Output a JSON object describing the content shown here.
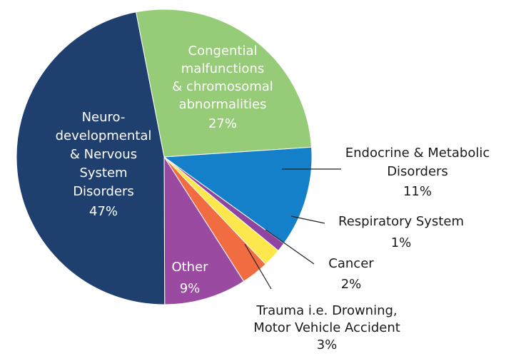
{
  "chart_data": {
    "type": "pie",
    "categories": [
      [
        "Congential",
        "malfunctions",
        "& chromosomal",
        "abnormalities"
      ],
      [
        "Endocrine & Metabolic",
        "Disorders"
      ],
      [
        "Respiratory System"
      ],
      [
        "Cancer"
      ],
      [
        "Trauma i.e. Drowning,",
        "Motor Vehicle Accident"
      ],
      [
        "Other"
      ],
      [
        "Neuro-",
        "developmental",
        "& Nervous",
        "System",
        "Disorders"
      ]
    ],
    "values": [
      27,
      11,
      1,
      2,
      3,
      9,
      47
    ],
    "value_labels": [
      "27%",
      "11%",
      "1%",
      "2%",
      "3%",
      "9%",
      "47%"
    ],
    "colors": [
      "#96cc78",
      "#1380c9",
      "#8e44a0",
      "#fde74c",
      "#f26c42",
      "#9a4aa0",
      "#1f3f6e"
    ]
  }
}
